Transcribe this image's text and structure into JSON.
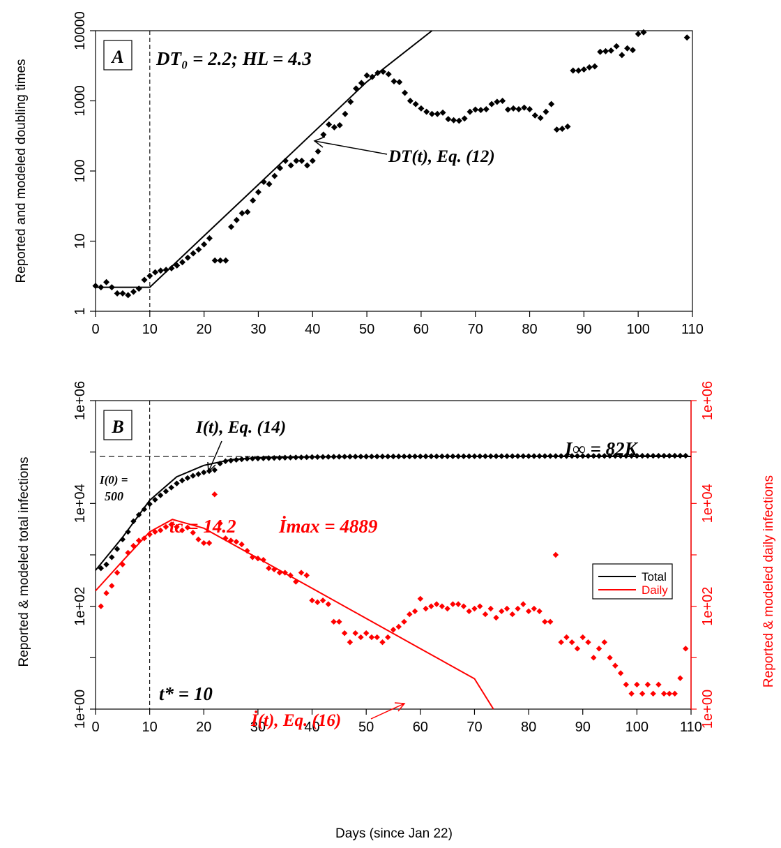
{
  "chart_data": [
    {
      "panel": "A",
      "type": "scatter",
      "panel_label": "A",
      "xlabel": "",
      "ylabel": "Reported and modeled doubling times",
      "xlim": [
        0,
        110
      ],
      "ylim": [
        1,
        10000
      ],
      "yscale": "log",
      "x_ticks": [
        "0",
        "10",
        "20",
        "30",
        "40",
        "50",
        "60",
        "70",
        "80",
        "90",
        "100",
        "110"
      ],
      "y_ticks": [
        "1",
        "10",
        "100",
        "1000",
        "10000"
      ],
      "vline_x": 10,
      "param_text": "DT₀ = 2.2; HL = 4.3",
      "curve_label": "DT(t), Eq. (12)",
      "reported": {
        "x": [
          0,
          1,
          2,
          3,
          4,
          5,
          6,
          7,
          8,
          9,
          10,
          11,
          12,
          13,
          14,
          15,
          16,
          17,
          18,
          19,
          20,
          21,
          22,
          23,
          24,
          25,
          26,
          27,
          28,
          29,
          30,
          31,
          32,
          33,
          34,
          35,
          36,
          37,
          38,
          39,
          40,
          41,
          42,
          43,
          44,
          45,
          46,
          47,
          48,
          49,
          50,
          51,
          52,
          53,
          54,
          55,
          56,
          57,
          58,
          59,
          60,
          61,
          62,
          63,
          64,
          65,
          66,
          67,
          68,
          69,
          70,
          71,
          72,
          73,
          74,
          75,
          76,
          77,
          78,
          79,
          80,
          81,
          82,
          83,
          84,
          85,
          86,
          87,
          88,
          89,
          90,
          91,
          92,
          93,
          94,
          95,
          96,
          97,
          98,
          99,
          100,
          101,
          109
        ],
        "y": [
          2.3,
          2.2,
          2.6,
          2.2,
          1.8,
          1.8,
          1.7,
          1.9,
          2.1,
          2.8,
          3.2,
          3.6,
          3.8,
          3.9,
          4.1,
          4.5,
          5.0,
          5.8,
          6.7,
          7.6,
          9,
          11,
          5.3,
          5.3,
          5.3,
          16,
          20,
          25,
          26,
          38,
          50,
          70,
          65,
          85,
          110,
          140,
          120,
          140,
          140,
          120,
          140,
          190,
          330,
          460,
          420,
          450,
          650,
          970,
          1500,
          1800,
          2300,
          2200,
          2500,
          2600,
          2400,
          1900,
          1850,
          1300,
          1000,
          900,
          780,
          700,
          650,
          650,
          680,
          550,
          530,
          520,
          560,
          700,
          750,
          740,
          760,
          900,
          970,
          1000,
          750,
          780,
          760,
          800,
          760,
          620,
          570,
          700,
          900,
          390,
          400,
          430,
          2700,
          2700,
          2800,
          3000,
          3100,
          5000,
          5100,
          5200,
          6000,
          4500,
          5600,
          5300,
          9000,
          9500,
          8000
        ]
      },
      "model": {
        "x": [
          0,
          10,
          20,
          30,
          40,
          50,
          62
        ],
        "y": [
          2.2,
          2.2,
          11.9,
          64,
          346,
          1870,
          10000
        ]
      }
    },
    {
      "panel": "B",
      "type": "scatter",
      "panel_label": "B",
      "xlabel": "Days (since Jan 22)",
      "ylabel": "Reported & modeled  total infections",
      "ylabel_right": "Reported & modeled daily infections",
      "xlim": [
        0,
        110
      ],
      "ylim": [
        1,
        1000000
      ],
      "yscale": "log",
      "x_ticks": [
        "0",
        "10",
        "20",
        "30",
        "40",
        "50",
        "60",
        "70",
        "80",
        "90",
        "100",
        "110"
      ],
      "y_ticks": [
        "1e+00",
        "1e+02",
        "1e+04",
        "1e+06"
      ],
      "vline_x": 10,
      "hline_y": 82000,
      "i0_label": "I(0) =",
      "i0_value": "500",
      "inf_label": "I∞ = 82K",
      "total_curve_label": "I(t), Eq. (14)",
      "tc_label": "tc = 14.2",
      "imax_label": "İmax = 4889",
      "daily_curve_label": "İ(t), Eq. (16)",
      "tstar_label": "t* = 10",
      "legend": {
        "placement": "right",
        "entries": [
          "Total",
          "Daily"
        ]
      },
      "series": [
        {
          "name": "Total",
          "color": "#000000",
          "reported_total": {
            "x": [
              1,
              2,
              3,
              4,
              5,
              6,
              7,
              8,
              9,
              10,
              11,
              12,
              13,
              14,
              15,
              16,
              17,
              18,
              19,
              20,
              21,
              22,
              23,
              24,
              25,
              26,
              27,
              28,
              29,
              30,
              31,
              32,
              33,
              34,
              35,
              36,
              37,
              38,
              39,
              40,
              41,
              42,
              43,
              44,
              45,
              46,
              47,
              48,
              49,
              50,
              51,
              52,
              53,
              54,
              55,
              56,
              57,
              58,
              59,
              60,
              61,
              62,
              63,
              64,
              65,
              66,
              67,
              68,
              69,
              70,
              71,
              72,
              73,
              74,
              75,
              76,
              77,
              78,
              79,
              80,
              81,
              82,
              83,
              84,
              85,
              86,
              87,
              88,
              89,
              90,
              91,
              92,
              93,
              94,
              95,
              96,
              97,
              98,
              99,
              100,
              101,
              102,
              103,
              104,
              105,
              106,
              107,
              108,
              109
            ],
            "y": [
              550,
              650,
              900,
              1300,
              2000,
              2800,
              4500,
              6000,
              7700,
              9700,
              11800,
              14400,
              17200,
              20400,
              24500,
              28000,
              31200,
              34500,
              37200,
              40200,
              42700,
              44700,
              59800,
              66300,
              68300,
              70500,
              72400,
              74200,
              74600,
              75000,
              75500,
              76200,
              76700,
              77200,
              77700,
              78100,
              78500,
              78800,
              79300,
              79800,
              80000,
              80400,
              80700,
              81000,
              81100,
              81300,
              81400,
              81500,
              81600,
              81700,
              81800,
              81900,
              81950,
              82000,
              82050,
              82100,
              82150,
              82200,
              82250,
              82300,
              82350,
              82400,
              82450,
              82500,
              82550,
              82600,
              82650,
              82700,
              82750,
              82800,
              82850,
              82900,
              82950,
              83000,
              83050,
              83100,
              83150,
              83200,
              83250,
              83300,
              83350,
              83400,
              83450,
              83500,
              83550,
              83600,
              83650,
              83700,
              83750,
              83800,
              83850,
              83900,
              83950,
              84000,
              84050,
              84100,
              84150,
              84200,
              84250,
              84300,
              84350,
              84400,
              84450,
              84500,
              84550,
              84600,
              84650,
              84700,
              84750
            ]
          },
          "model_total": {
            "x": [
              0,
              5,
              10,
              15,
              20,
              25,
              30,
              40,
              50,
              60,
              70,
              80,
              90,
              100,
              110
            ],
            "y": [
              500,
              2200,
              11500,
              33000,
              55000,
              71000,
              78000,
              81200,
              81800,
              82000,
              82000,
              82000,
              82000,
              82000,
              82000
            ]
          }
        },
        {
          "name": "Daily",
          "color": "#ff0000",
          "reported_daily": {
            "x": [
              1,
              2,
              3,
              4,
              5,
              6,
              7,
              8,
              9,
              10,
              11,
              12,
              13,
              14,
              15,
              16,
              17,
              18,
              19,
              20,
              21,
              22,
              23,
              24,
              25,
              26,
              27,
              28,
              29,
              30,
              31,
              32,
              33,
              34,
              35,
              36,
              37,
              38,
              39,
              40,
              41,
              42,
              43,
              44,
              45,
              46,
              47,
              48,
              49,
              50,
              51,
              52,
              53,
              54,
              55,
              56,
              57,
              58,
              59,
              60,
              61,
              62,
              63,
              64,
              65,
              66,
              67,
              68,
              69,
              70,
              71,
              72,
              73,
              74,
              75,
              76,
              77,
              78,
              79,
              80,
              81,
              82,
              83,
              84,
              85,
              86,
              87,
              88,
              89,
              90,
              91,
              92,
              93,
              94,
              95,
              96,
              97,
              98,
              99,
              100,
              101,
              102,
              103,
              104,
              105,
              106,
              107,
              108,
              109
            ],
            "y": [
              100,
              180,
              250,
              450,
              650,
              1100,
              1500,
              1900,
              2100,
              2500,
              2800,
              3000,
              3500,
              3900,
              3500,
              3000,
              3400,
              2700,
              2000,
              1700,
              1700,
              15000,
              4100,
              2100,
              1900,
              1800,
              1600,
              1200,
              900,
              850,
              800,
              550,
              520,
              450,
              450,
              400,
              300,
              450,
              400,
              130,
              120,
              130,
              110,
              50,
              50,
              30,
              20,
              30,
              25,
              30,
              25,
              25,
              20,
              25,
              35,
              40,
              50,
              70,
              80,
              140,
              90,
              100,
              110,
              100,
              90,
              110,
              110,
              100,
              80,
              90,
              100,
              70,
              90,
              60,
              80,
              90,
              70,
              90,
              110,
              80,
              90,
              80,
              50,
              50,
              1000,
              20,
              25,
              20,
              15,
              25,
              20,
              10,
              15,
              20,
              10,
              7,
              5,
              3,
              2,
              3,
              2,
              3,
              2,
              3,
              2,
              2,
              2,
              4,
              15
            ]
          },
          "model_daily": {
            "x": [
              0,
              5,
              10,
              14.2,
              20,
              30,
              40,
              50,
              60,
              70,
              73.5
            ],
            "y": [
              200,
              760,
              2800,
              4889,
              3300,
              860,
              224,
              58,
              15,
              3.9,
              1
            ]
          }
        }
      ]
    }
  ]
}
